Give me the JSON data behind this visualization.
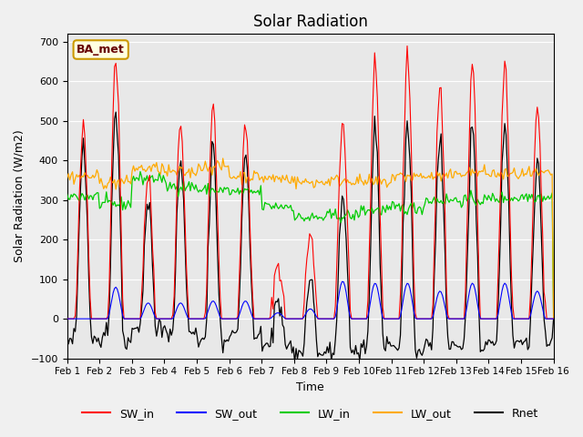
{
  "title": "Solar Radiation",
  "ylabel": "Solar Radiation (W/m2)",
  "xlabel": "Time",
  "ylim": [
    -100,
    720
  ],
  "yticks": [
    -100,
    0,
    100,
    200,
    300,
    400,
    500,
    600,
    700
  ],
  "xtick_labels": [
    "Feb 1",
    "Feb 2",
    "Feb 3",
    "Feb 4",
    "Feb 5",
    "Feb 6",
    "Feb 7",
    "Feb 8",
    "Feb 9",
    "Feb 10",
    "Feb 11",
    "Feb 12",
    "Feb 13",
    "Feb 14",
    "Feb 15",
    "Feb 16"
  ],
  "colors": {
    "SW_in": "#ff0000",
    "SW_out": "#0000ff",
    "LW_in": "#00cc00",
    "LW_out": "#ffaa00",
    "Rnet": "#000000"
  },
  "legend_label": "BA_met",
  "bg_color": "#e8e8e8",
  "plot_bg_color": "#e8e8e8",
  "sw_in_peaks": [
    480,
    660,
    360,
    490,
    530,
    480,
    140,
    210,
    505,
    640,
    660,
    590,
    640,
    640,
    530
  ],
  "sw_out_peaks": [
    0,
    80,
    40,
    40,
    45,
    45,
    15,
    25,
    95,
    90,
    90,
    70,
    90,
    90,
    70
  ],
  "lw_in_base": [
    310,
    290,
    355,
    335,
    325,
    320,
    285,
    255,
    260,
    275,
    280,
    300,
    300,
    305,
    310
  ],
  "lw_out_base": [
    360,
    345,
    380,
    370,
    385,
    360,
    355,
    345,
    350,
    345,
    360,
    360,
    370,
    365,
    365
  ]
}
